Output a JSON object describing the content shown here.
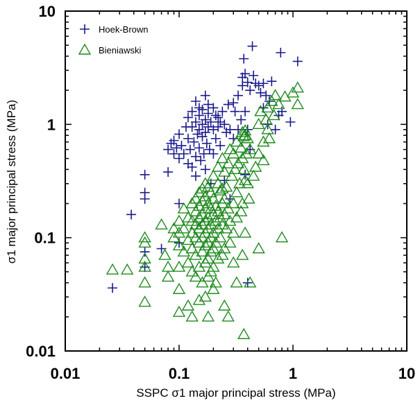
{
  "chart_data": {
    "type": "scatter",
    "scale": "log-log",
    "xlabel": "SSPC σ1 major principal stress (MPa)",
    "ylabel": "σ1 major principal stress (MPa)",
    "xlim": [
      0.01,
      10
    ],
    "ylim": [
      0.01,
      10
    ],
    "x_ticks": [
      0.01,
      0.1,
      1,
      10
    ],
    "y_ticks": [
      0.01,
      0.1,
      1,
      10
    ],
    "x_tick_labels": [
      "0.01",
      "0.1",
      "1",
      "10"
    ],
    "y_tick_labels": [
      "0.01",
      "0.1",
      "1",
      "10"
    ],
    "grid": false,
    "legend_position": "top-left",
    "series": [
      {
        "name": "Hoek-Brown",
        "marker": "plus",
        "color": "#1a1a8c",
        "points": [
          [
            0.026,
            0.036
          ],
          [
            0.038,
            0.16
          ],
          [
            0.05,
            0.36
          ],
          [
            0.05,
            0.25
          ],
          [
            0.05,
            0.22
          ],
          [
            0.05,
            0.075
          ],
          [
            0.05,
            0.055
          ],
          [
            0.07,
            0.08
          ],
          [
            0.08,
            0.38
          ],
          [
            0.08,
            0.6
          ],
          [
            0.085,
            0.68
          ],
          [
            0.09,
            0.55
          ],
          [
            0.09,
            0.72
          ],
          [
            0.095,
            0.62
          ],
          [
            0.1,
            0.82
          ],
          [
            0.1,
            0.5
          ],
          [
            0.1,
            0.2
          ],
          [
            0.1,
            0.09
          ],
          [
            0.105,
            0.65
          ],
          [
            0.11,
            0.55
          ],
          [
            0.115,
            0.95
          ],
          [
            0.12,
            1.15
          ],
          [
            0.12,
            0.75
          ],
          [
            0.12,
            0.45
          ],
          [
            0.125,
            0.6
          ],
          [
            0.13,
            1.3
          ],
          [
            0.13,
            0.95
          ],
          [
            0.13,
            0.42
          ],
          [
            0.135,
            0.7
          ],
          [
            0.14,
            1.6
          ],
          [
            0.14,
            1.05
          ],
          [
            0.14,
            0.52
          ],
          [
            0.14,
            0.35
          ],
          [
            0.145,
            0.82
          ],
          [
            0.15,
            1.4
          ],
          [
            0.15,
            1.2
          ],
          [
            0.15,
            0.9
          ],
          [
            0.15,
            0.62
          ],
          [
            0.155,
            0.48
          ],
          [
            0.16,
            1.35
          ],
          [
            0.16,
            1.0
          ],
          [
            0.16,
            0.78
          ],
          [
            0.165,
            0.55
          ],
          [
            0.17,
            1.8
          ],
          [
            0.17,
            1.1
          ],
          [
            0.17,
            0.85
          ],
          [
            0.17,
            0.4
          ],
          [
            0.175,
            0.68
          ],
          [
            0.18,
            1.5
          ],
          [
            0.18,
            1.25
          ],
          [
            0.18,
            0.95
          ],
          [
            0.185,
            0.6
          ],
          [
            0.19,
            1.05
          ],
          [
            0.19,
            0.3
          ],
          [
            0.2,
            1.4
          ],
          [
            0.2,
            0.9
          ],
          [
            0.2,
            0.55
          ],
          [
            0.21,
            1.2
          ],
          [
            0.21,
            0.75
          ],
          [
            0.22,
            1.15
          ],
          [
            0.22,
            0.95
          ],
          [
            0.23,
            1.05
          ],
          [
            0.23,
            0.65
          ],
          [
            0.24,
            1.3
          ],
          [
            0.25,
            1.0
          ],
          [
            0.26,
            0.85
          ],
          [
            0.27,
            1.5
          ],
          [
            0.28,
            0.9
          ],
          [
            0.3,
            1.55
          ],
          [
            0.3,
            0.75
          ],
          [
            0.31,
            1.3
          ],
          [
            0.33,
            1.8
          ],
          [
            0.33,
            0.9
          ],
          [
            0.35,
            1.1
          ],
          [
            0.36,
            2.6
          ],
          [
            0.36,
            2.2
          ],
          [
            0.37,
            3.8
          ],
          [
            0.38,
            2.8
          ],
          [
            0.38,
            1.3
          ],
          [
            0.4,
            2.35
          ],
          [
            0.4,
            0.9
          ],
          [
            0.42,
            2.0
          ],
          [
            0.42,
            0.6
          ],
          [
            0.44,
            4.9
          ],
          [
            0.45,
            2.7
          ],
          [
            0.47,
            2.3
          ],
          [
            0.5,
            2.2
          ],
          [
            0.52,
            1.9
          ],
          [
            0.55,
            2.3
          ],
          [
            0.55,
            1.4
          ],
          [
            0.58,
            1.8
          ],
          [
            0.6,
            1.0
          ],
          [
            0.62,
            1.6
          ],
          [
            0.65,
            2.4
          ],
          [
            0.7,
            0.9
          ],
          [
            0.75,
            1.2
          ],
          [
            0.78,
            4.3
          ],
          [
            0.8,
            1.3
          ],
          [
            0.95,
            1.05
          ],
          [
            1.1,
            3.6
          ],
          [
            0.4,
            0.04
          ],
          [
            0.38,
            0.36
          ],
          [
            0.28,
            0.22
          ],
          [
            0.25,
            0.32
          ]
        ]
      },
      {
        "name": "Bieniawski",
        "marker": "triangle",
        "color": "#1f8a1f",
        "points": [
          [
            0.026,
            0.052
          ],
          [
            0.035,
            0.052
          ],
          [
            0.05,
            0.1
          ],
          [
            0.05,
            0.09
          ],
          [
            0.05,
            0.065
          ],
          [
            0.05,
            0.055
          ],
          [
            0.05,
            0.04
          ],
          [
            0.05,
            0.027
          ],
          [
            0.07,
            0.13
          ],
          [
            0.075,
            0.07
          ],
          [
            0.08,
            0.055
          ],
          [
            0.08,
            0.045
          ],
          [
            0.09,
            0.12
          ],
          [
            0.09,
            0.1
          ],
          [
            0.1,
            0.14
          ],
          [
            0.1,
            0.11
          ],
          [
            0.1,
            0.085
          ],
          [
            0.1,
            0.055
          ],
          [
            0.1,
            0.035
          ],
          [
            0.1,
            0.022
          ],
          [
            0.11,
            0.18
          ],
          [
            0.11,
            0.12
          ],
          [
            0.11,
            0.075
          ],
          [
            0.12,
            0.15
          ],
          [
            0.12,
            0.095
          ],
          [
            0.12,
            0.06
          ],
          [
            0.12,
            0.025
          ],
          [
            0.13,
            0.2
          ],
          [
            0.13,
            0.14
          ],
          [
            0.13,
            0.11
          ],
          [
            0.13,
            0.08
          ],
          [
            0.13,
            0.05
          ],
          [
            0.13,
            0.02
          ],
          [
            0.14,
            0.22
          ],
          [
            0.14,
            0.17
          ],
          [
            0.14,
            0.13
          ],
          [
            0.14,
            0.1
          ],
          [
            0.14,
            0.07
          ],
          [
            0.14,
            0.045
          ],
          [
            0.15,
            0.25
          ],
          [
            0.15,
            0.19
          ],
          [
            0.15,
            0.15
          ],
          [
            0.15,
            0.12
          ],
          [
            0.15,
            0.09
          ],
          [
            0.15,
            0.055
          ],
          [
            0.15,
            0.028
          ],
          [
            0.16,
            0.27
          ],
          [
            0.16,
            0.21
          ],
          [
            0.16,
            0.16
          ],
          [
            0.16,
            0.13
          ],
          [
            0.16,
            0.1
          ],
          [
            0.16,
            0.075
          ],
          [
            0.16,
            0.04
          ],
          [
            0.17,
            0.3
          ],
          [
            0.17,
            0.23
          ],
          [
            0.17,
            0.18
          ],
          [
            0.17,
            0.14
          ],
          [
            0.17,
            0.11
          ],
          [
            0.17,
            0.085
          ],
          [
            0.17,
            0.06
          ],
          [
            0.17,
            0.03
          ],
          [
            0.18,
            0.28
          ],
          [
            0.18,
            0.2
          ],
          [
            0.18,
            0.15
          ],
          [
            0.18,
            0.12
          ],
          [
            0.18,
            0.09
          ],
          [
            0.18,
            0.065
          ],
          [
            0.18,
            0.045
          ],
          [
            0.18,
            0.02
          ],
          [
            0.19,
            0.25
          ],
          [
            0.19,
            0.18
          ],
          [
            0.19,
            0.13
          ],
          [
            0.19,
            0.1
          ],
          [
            0.19,
            0.075
          ],
          [
            0.19,
            0.05
          ],
          [
            0.2,
            0.35
          ],
          [
            0.2,
            0.22
          ],
          [
            0.2,
            0.16
          ],
          [
            0.2,
            0.11
          ],
          [
            0.2,
            0.08
          ],
          [
            0.2,
            0.055
          ],
          [
            0.2,
            0.035
          ],
          [
            0.21,
            0.19
          ],
          [
            0.21,
            0.14
          ],
          [
            0.21,
            0.09
          ],
          [
            0.22,
            0.42
          ],
          [
            0.22,
            0.3
          ],
          [
            0.22,
            0.17
          ],
          [
            0.22,
            0.12
          ],
          [
            0.22,
            0.065
          ],
          [
            0.23,
            0.26
          ],
          [
            0.23,
            0.15
          ],
          [
            0.23,
            0.1
          ],
          [
            0.24,
            0.5
          ],
          [
            0.24,
            0.2
          ],
          [
            0.24,
            0.13
          ],
          [
            0.24,
            0.07
          ],
          [
            0.25,
            0.38
          ],
          [
            0.25,
            0.22
          ],
          [
            0.25,
            0.16
          ],
          [
            0.25,
            0.08
          ],
          [
            0.25,
            0.025
          ],
          [
            0.26,
            0.28
          ],
          [
            0.26,
            0.12
          ],
          [
            0.27,
            0.45
          ],
          [
            0.27,
            0.18
          ],
          [
            0.28,
            0.6
          ],
          [
            0.28,
            0.14
          ],
          [
            0.28,
            0.09
          ],
          [
            0.29,
            0.35
          ],
          [
            0.3,
            0.55
          ],
          [
            0.3,
            0.2
          ],
          [
            0.3,
            0.11
          ],
          [
            0.3,
            0.06
          ],
          [
            0.31,
            0.4
          ],
          [
            0.32,
            0.7
          ],
          [
            0.32,
            0.25
          ],
          [
            0.32,
            0.15
          ],
          [
            0.33,
            0.45
          ],
          [
            0.34,
            0.3
          ],
          [
            0.35,
            0.62
          ],
          [
            0.35,
            0.17
          ],
          [
            0.36,
            0.85
          ],
          [
            0.36,
            0.5
          ],
          [
            0.36,
            0.2
          ],
          [
            0.36,
            0.07
          ],
          [
            0.37,
            0.4
          ],
          [
            0.37,
            0.014
          ],
          [
            0.38,
            0.8
          ],
          [
            0.38,
            0.32
          ],
          [
            0.38,
            0.11
          ],
          [
            0.39,
            0.55
          ],
          [
            0.4,
            0.75
          ],
          [
            0.4,
            0.3
          ],
          [
            0.41,
            0.22
          ],
          [
            0.42,
            0.6
          ],
          [
            0.42,
            0.04
          ],
          [
            0.45,
            0.35
          ],
          [
            0.47,
            0.42
          ],
          [
            0.5,
            1.0
          ],
          [
            0.5,
            0.55
          ],
          [
            0.5,
            0.08
          ],
          [
            0.52,
            1.3
          ],
          [
            0.55,
            0.7
          ],
          [
            0.55,
            0.48
          ],
          [
            0.58,
            1.1
          ],
          [
            0.6,
            1.4
          ],
          [
            0.6,
            0.9
          ],
          [
            0.62,
            0.75
          ],
          [
            0.65,
            1.6
          ],
          [
            0.68,
            1.2
          ],
          [
            0.7,
            1.8
          ],
          [
            0.75,
            1.5
          ],
          [
            0.8,
            0.1
          ],
          [
            0.85,
            1.75
          ],
          [
            1.0,
            1.9
          ],
          [
            1.1,
            2.1
          ],
          [
            1.1,
            1.5
          ],
          [
            0.38,
            0.88
          ],
          [
            0.37,
            0.78
          ],
          [
            0.32,
            0.04
          ],
          [
            0.27,
            0.02
          ],
          [
            0.24,
            0.27
          ],
          [
            0.21,
            0.04
          ]
        ]
      }
    ]
  }
}
